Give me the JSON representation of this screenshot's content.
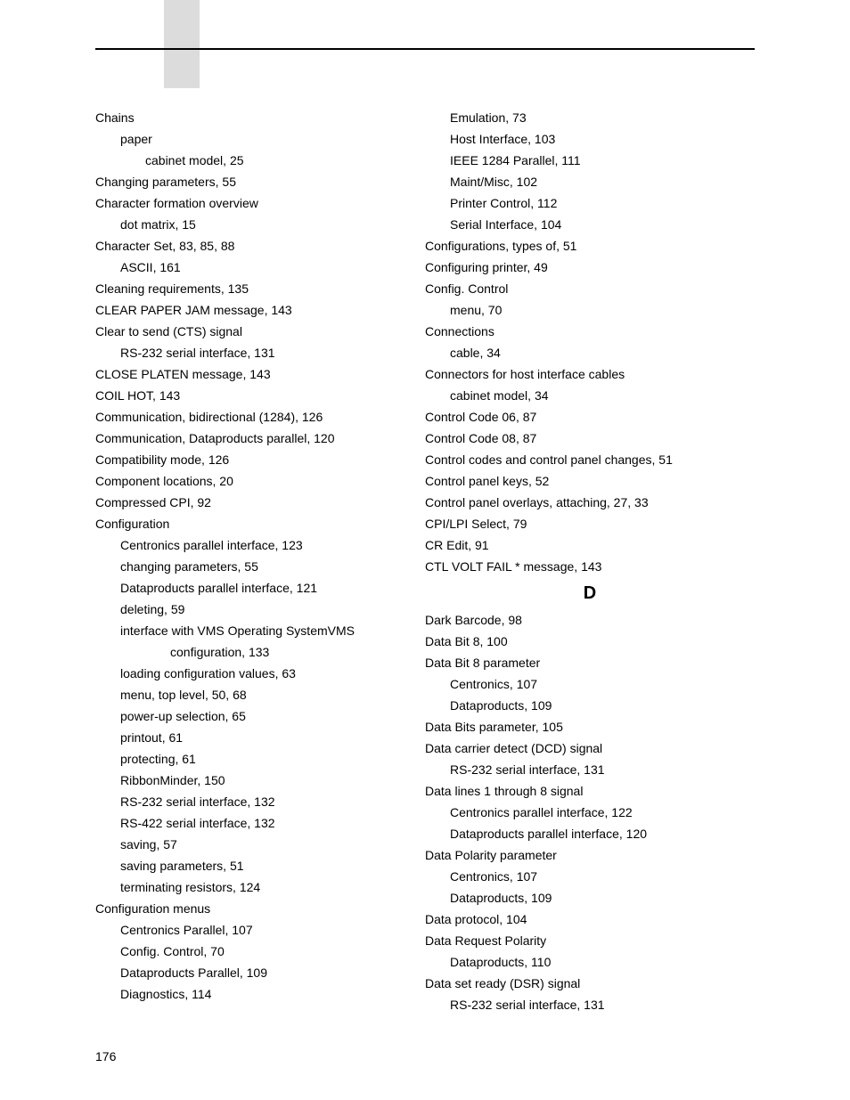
{
  "page_number": "176",
  "section_letter_d": "D",
  "col1": [
    {
      "t": "Chains",
      "l": 0
    },
    {
      "t": "paper",
      "l": 1
    },
    {
      "t": "cabinet model, 25",
      "l": 2
    },
    {
      "t": "Changing parameters, 55",
      "l": 0
    },
    {
      "t": "Character formation overview",
      "l": 0
    },
    {
      "t": "dot matrix, 15",
      "l": 1
    },
    {
      "t": "Character Set, 83, 85, 88",
      "l": 0
    },
    {
      "t": "ASCII, 161",
      "l": 1
    },
    {
      "t": "Cleaning requirements, 135",
      "l": 0
    },
    {
      "t": "CLEAR PAPER JAM message, 143",
      "l": 0
    },
    {
      "t": "Clear to send (CTS) signal",
      "l": 0
    },
    {
      "t": "RS-232 serial interface, 131",
      "l": 1
    },
    {
      "t": "CLOSE PLATEN message, 143",
      "l": 0
    },
    {
      "t": "COIL HOT, 143",
      "l": 0
    },
    {
      "t": "Communication, bidirectional (1284), 126",
      "l": 0
    },
    {
      "t": "Communication, Dataproducts parallel, 120",
      "l": 0
    },
    {
      "t": "Compatibility mode, 126",
      "l": 0
    },
    {
      "t": "Component locations, 20",
      "l": 0
    },
    {
      "t": "Compressed CPI, 92",
      "l": 0
    },
    {
      "t": "Configuration",
      "l": 0
    },
    {
      "t": "Centronics parallel interface, 123",
      "l": 1
    },
    {
      "t": "changing parameters, 55",
      "l": 1
    },
    {
      "t": "Dataproducts parallel interface, 121",
      "l": 1
    },
    {
      "t": "deleting, 59",
      "l": 1
    },
    {
      "t": "interface with VMS Operating SystemVMS",
      "l": 1
    },
    {
      "t": "configuration, 133",
      "l": 3
    },
    {
      "t": "loading configuration values, 63",
      "l": 1
    },
    {
      "t": "menu, top level, 50, 68",
      "l": 1
    },
    {
      "t": "power-up selection, 65",
      "l": 1
    },
    {
      "t": "printout, 61",
      "l": 1
    },
    {
      "t": "protecting, 61",
      "l": 1
    },
    {
      "t": "RibbonMinder, 150",
      "l": 1
    },
    {
      "t": "RS-232 serial interface, 132",
      "l": 1
    },
    {
      "t": "RS-422 serial interface, 132",
      "l": 1
    },
    {
      "t": "saving, 57",
      "l": 1
    },
    {
      "t": "saving parameters, 51",
      "l": 1
    },
    {
      "t": "terminating resistors, 124",
      "l": 1
    },
    {
      "t": "Configuration menus",
      "l": 0
    },
    {
      "t": "Centronics Parallel, 107",
      "l": 1
    },
    {
      "t": "Config. Control, 70",
      "l": 1
    },
    {
      "t": "Dataproducts Parallel, 109",
      "l": 1
    },
    {
      "t": "Diagnostics, 114",
      "l": 1
    }
  ],
  "col2a": [
    {
      "t": "Emulation, 73",
      "l": 1
    },
    {
      "t": "Host Interface, 103",
      "l": 1
    },
    {
      "t": "IEEE 1284 Parallel, 111",
      "l": 1
    },
    {
      "t": "Maint/Misc, 102",
      "l": 1
    },
    {
      "t": "Printer Control, 112",
      "l": 1
    },
    {
      "t": "Serial Interface, 104",
      "l": 1
    },
    {
      "t": "Configurations, types of, 51",
      "l": 0
    },
    {
      "t": "Configuring printer, 49",
      "l": 0
    },
    {
      "t": "Config. Control",
      "l": 0
    },
    {
      "t": "menu, 70",
      "l": 1
    },
    {
      "t": "Connections",
      "l": 0
    },
    {
      "t": "cable, 34",
      "l": 1
    },
    {
      "t": "Connectors for host interface cables",
      "l": 0
    },
    {
      "t": "cabinet model, 34",
      "l": 1
    },
    {
      "t": "Control Code 06, 87",
      "l": 0
    },
    {
      "t": "Control Code 08, 87",
      "l": 0
    },
    {
      "t": "Control codes and control panel changes, 51",
      "l": 0
    },
    {
      "t": "Control panel keys, 52",
      "l": 0
    },
    {
      "t": "Control panel overlays, attaching, 27, 33",
      "l": 0
    },
    {
      "t": "CPI/LPI Select, 79",
      "l": 0
    },
    {
      "t": "CR Edit, 91",
      "l": 0
    },
    {
      "t": "CTL VOLT FAIL * message, 143",
      "l": 0
    }
  ],
  "col2b": [
    {
      "t": "Dark Barcode, 98",
      "l": 0
    },
    {
      "t": "Data Bit 8, 100",
      "l": 0
    },
    {
      "t": "Data Bit 8 parameter",
      "l": 0
    },
    {
      "t": "Centronics, 107",
      "l": 1
    },
    {
      "t": "Dataproducts, 109",
      "l": 1
    },
    {
      "t": "Data Bits parameter, 105",
      "l": 0
    },
    {
      "t": "Data carrier detect (DCD) signal",
      "l": 0
    },
    {
      "t": "RS-232 serial interface, 131",
      "l": 1
    },
    {
      "t": "Data lines 1 through 8 signal",
      "l": 0
    },
    {
      "t": "Centronics parallel interface, 122",
      "l": 1
    },
    {
      "t": "Dataproducts parallel interface, 120",
      "l": 1
    },
    {
      "t": "Data Polarity parameter",
      "l": 0
    },
    {
      "t": "Centronics, 107",
      "l": 1
    },
    {
      "t": "Dataproducts, 109",
      "l": 1
    },
    {
      "t": "Data protocol, 104",
      "l": 0
    },
    {
      "t": "Data Request Polarity",
      "l": 0
    },
    {
      "t": "Dataproducts, 110",
      "l": 1
    },
    {
      "t": "Data set ready (DSR) signal",
      "l": 0
    },
    {
      "t": "RS-232 serial interface, 131",
      "l": 1
    }
  ]
}
